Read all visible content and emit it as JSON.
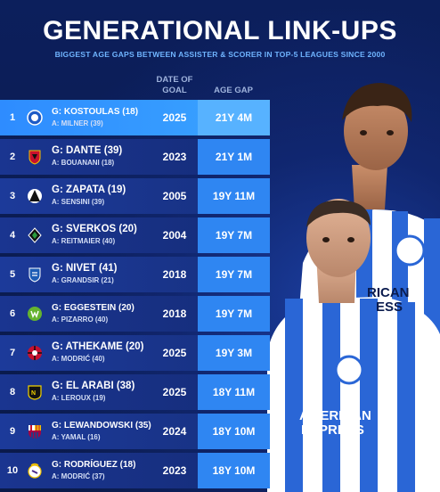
{
  "title": "GENERATIONAL LINK-UPS",
  "subtitle": "BIGGEST AGE GAPS BETWEEN ASSISTER & SCORER IN TOP-5 LEAGUES SINCE 2000",
  "columns": {
    "date_of_goal": "DATE OF\nGOAL",
    "age_gap": "AGE GAP"
  },
  "rows": [
    {
      "rank": "1",
      "scorer": "G: KOSTOULAS (18)",
      "assister": "A: MILNER (39)",
      "year": "2025",
      "gap": "21Y 4M",
      "club_icon": "brighton-badge-icon"
    },
    {
      "rank": "2",
      "scorer": "G: DANTE (39)",
      "assister": "A: BOUANANI (18)",
      "year": "2023",
      "gap": "21Y 1M",
      "club_icon": "nice-badge-icon"
    },
    {
      "rank": "3",
      "scorer": "G: ZAPATA (19)",
      "assister": "A: SENSINI (39)",
      "year": "2005",
      "gap": "19Y 11M",
      "club_icon": "udinese-badge-icon"
    },
    {
      "rank": "4",
      "scorer": "G: SVERKOS (20)",
      "assister": "A: REITMAIER (40)",
      "year": "2004",
      "gap": "19Y 7M",
      "club_icon": "gladbach-badge-icon"
    },
    {
      "rank": "5",
      "scorer": "G: NIVET (41)",
      "assister": "A: GRANDSIR (21)",
      "year": "2018",
      "gap": "19Y 7M",
      "club_icon": "troyes-badge-icon"
    },
    {
      "rank": "6",
      "scorer": "G: EGGESTEIN (20)",
      "assister": "A: PIZARRO (40)",
      "year": "2018",
      "gap": "19Y 7M",
      "club_icon": "wolfsburg-badge-icon"
    },
    {
      "rank": "7",
      "scorer": "G: ATHEKAME (20)",
      "assister": "A: MODRIĆ (40)",
      "year": "2025",
      "gap": "19Y 3M",
      "club_icon": "milan-badge-icon"
    },
    {
      "rank": "8",
      "scorer": "G: EL ARABI (38)",
      "assister": "A: LEROUX (19)",
      "year": "2025",
      "gap": "18Y 11M",
      "club_icon": "nantes-badge-icon"
    },
    {
      "rank": "9",
      "scorer": "G: LEWANDOWSKI (35)",
      "assister": "A: YAMAL (16)",
      "year": "2024",
      "gap": "18Y 10M",
      "club_icon": "barcelona-badge-icon"
    },
    {
      "rank": "10",
      "scorer": "G: RODRÍGUEZ (18)",
      "assister": "A: MODRIĆ (37)",
      "year": "2023",
      "gap": "18Y 10M",
      "club_icon": "real-madrid-badge-icon"
    }
  ],
  "jersey_text": {
    "sponsor_top": "RICAN\nESS",
    "sponsor_bottom": "AMERICAN\nEXPRESS"
  },
  "colors": {
    "background": "#0a1b4e",
    "accent": "#2f86f2",
    "highlight": "#57b2ff",
    "subtitle": "#6fb4ff"
  }
}
